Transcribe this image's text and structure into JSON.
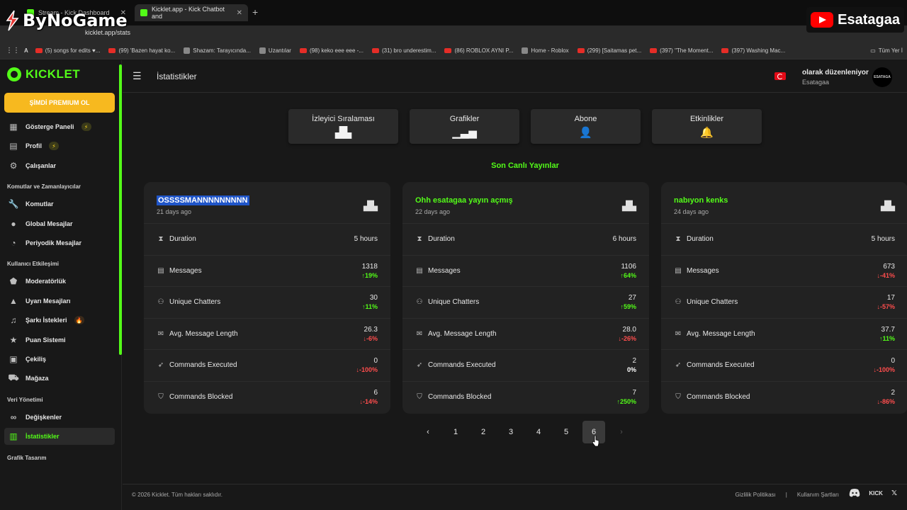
{
  "browser": {
    "tabs": [
      {
        "title": "Stream - Kick Dashboard"
      },
      {
        "title": "Kicklet.app - Kick Chatbot and"
      }
    ],
    "url": "kicklet.app/stats",
    "bookmarks": [
      {
        "label": "(5) songs for edits ♥...",
        "type": "yt"
      },
      {
        "label": "(99) 'Bazen hayat ko...",
        "type": "yt"
      },
      {
        "label": "Shazam: Tarayıcında...",
        "type": "gen"
      },
      {
        "label": "Uzantılar",
        "type": "gen"
      },
      {
        "label": "(98) keko eee eee -...",
        "type": "yt"
      },
      {
        "label": "(31) bro underestim...",
        "type": "yt"
      },
      {
        "label": "(86) ROBLOX AYNI P...",
        "type": "yt"
      },
      {
        "label": "Home - Roblox",
        "type": "gen"
      },
      {
        "label": "(299) [Saitamas pet...",
        "type": "yt"
      },
      {
        "label": "(397) \"The Moment...",
        "type": "yt"
      },
      {
        "label": "(397) Washing Mac...",
        "type": "yt"
      }
    ],
    "bookmarks_folder": "Tüm Yer İ"
  },
  "watermarks": {
    "left": "ByNoGame",
    "right": "Esatagaa"
  },
  "sidebar": {
    "logo": "KICKLET",
    "premium": "ŞİMDİ PREMIUM OL",
    "groups": [
      {
        "heading": "",
        "items": [
          {
            "label": "Gösterge Paneli",
            "icon": "dashboard-icon",
            "badge": "⚡"
          },
          {
            "label": "Profil",
            "icon": "profile-icon",
            "badge": "⚡"
          },
          {
            "label": "Çalışanlar",
            "icon": "workers-icon",
            "badge": ""
          }
        ]
      },
      {
        "heading": "Komutlar ve Zamanlayıcılar",
        "items": [
          {
            "label": "Komutlar",
            "icon": "wrench-icon",
            "badge": ""
          },
          {
            "label": "Global Mesajlar",
            "icon": "chat-icon",
            "badge": ""
          },
          {
            "label": "Periyodik Mesajlar",
            "icon": "clock-icon",
            "badge": ""
          }
        ]
      },
      {
        "heading": "Kullanıcı Etkileşimi",
        "items": [
          {
            "label": "Moderatörlük",
            "icon": "shield-icon",
            "badge": ""
          },
          {
            "label": "Uyarı Mesajları",
            "icon": "warning-icon",
            "badge": ""
          },
          {
            "label": "Şarkı İstekleri",
            "icon": "music-icon",
            "badge": "🔥"
          },
          {
            "label": "Puan Sistemi",
            "icon": "star-icon",
            "badge": ""
          },
          {
            "label": "Çekiliş",
            "icon": "gift-icon",
            "badge": ""
          },
          {
            "label": "Mağaza",
            "icon": "cart-icon",
            "badge": ""
          }
        ]
      },
      {
        "heading": "Veri Yönetimi",
        "items": [
          {
            "label": "Değişkenler",
            "icon": "link-icon",
            "badge": ""
          },
          {
            "label": "İstatistikler",
            "icon": "chart-icon",
            "badge": "",
            "active": true
          }
        ]
      },
      {
        "heading": "Grafik Tasarım",
        "items": []
      }
    ]
  },
  "header": {
    "title": "İstatistikler",
    "user_role": "olarak düzenleniyor",
    "user_name": "Esatagaa",
    "avatar_text": "ESATAGA"
  },
  "nav_tabs": [
    {
      "label": "İzleyici Sıralaması",
      "icon": "podium-icon"
    },
    {
      "label": "Grafikler",
      "icon": "bar-chart-icon"
    },
    {
      "label": "Abone",
      "icon": "user-add-icon"
    },
    {
      "label": "Etkinlikler",
      "icon": "bell-icon"
    }
  ],
  "section_title": "Son Canlı Yayınlar",
  "streams": [
    {
      "title": "OSSSSMANNNNNNNNN",
      "selected": true,
      "date": "21 days ago",
      "stats": [
        {
          "label": "Duration",
          "value": "5 hours",
          "change": "",
          "trend": ""
        },
        {
          "label": "Messages",
          "value": "1318",
          "change": "19%",
          "trend": "up"
        },
        {
          "label": "Unique Chatters",
          "value": "30",
          "change": "11%",
          "trend": "up"
        },
        {
          "label": "Avg. Message Length",
          "value": "26.3",
          "change": "-6%",
          "trend": "down"
        },
        {
          "label": "Commands Executed",
          "value": "0",
          "change": "-100%",
          "trend": "down"
        },
        {
          "label": "Commands Blocked",
          "value": "6",
          "change": "-14%",
          "trend": "down"
        }
      ]
    },
    {
      "title": "Ohh esatagaa yayın açmış",
      "selected": false,
      "date": "22 days ago",
      "stats": [
        {
          "label": "Duration",
          "value": "6 hours",
          "change": "",
          "trend": ""
        },
        {
          "label": "Messages",
          "value": "1106",
          "change": "64%",
          "trend": "up"
        },
        {
          "label": "Unique Chatters",
          "value": "27",
          "change": "59%",
          "trend": "up"
        },
        {
          "label": "Avg. Message Length",
          "value": "28.0",
          "change": "-26%",
          "trend": "down"
        },
        {
          "label": "Commands Executed",
          "value": "2",
          "change": "0%",
          "trend": "flat"
        },
        {
          "label": "Commands Blocked",
          "value": "7",
          "change": "250%",
          "trend": "up"
        }
      ]
    },
    {
      "title": "nabıyon kenks",
      "selected": false,
      "date": "24 days ago",
      "stats": [
        {
          "label": "Duration",
          "value": "5 hours",
          "change": "",
          "trend": ""
        },
        {
          "label": "Messages",
          "value": "673",
          "change": "-41%",
          "trend": "down"
        },
        {
          "label": "Unique Chatters",
          "value": "17",
          "change": "-57%",
          "trend": "down"
        },
        {
          "label": "Avg. Message Length",
          "value": "37.7",
          "change": "11%",
          "trend": "up"
        },
        {
          "label": "Commands Executed",
          "value": "0",
          "change": "-100%",
          "trend": "down"
        },
        {
          "label": "Commands Blocked",
          "value": "2",
          "change": "-86%",
          "trend": "down"
        }
      ]
    }
  ],
  "pagination": {
    "pages": [
      "1",
      "2",
      "3",
      "4",
      "5",
      "6"
    ],
    "current": "6",
    "prev": "‹",
    "next": "›"
  },
  "footer": {
    "copyright": "© 2026 Kicklet. Tüm hakları saklıdır.",
    "links": [
      "Gizlilik Politikası",
      "|",
      "Kullanım Şartları"
    ],
    "kick": "KICK",
    "x": "𝕏"
  },
  "colors": {
    "accent": "#53fc18",
    "premium": "#f7b91f",
    "up": "#53fc18",
    "down": "#ff4d4d"
  }
}
